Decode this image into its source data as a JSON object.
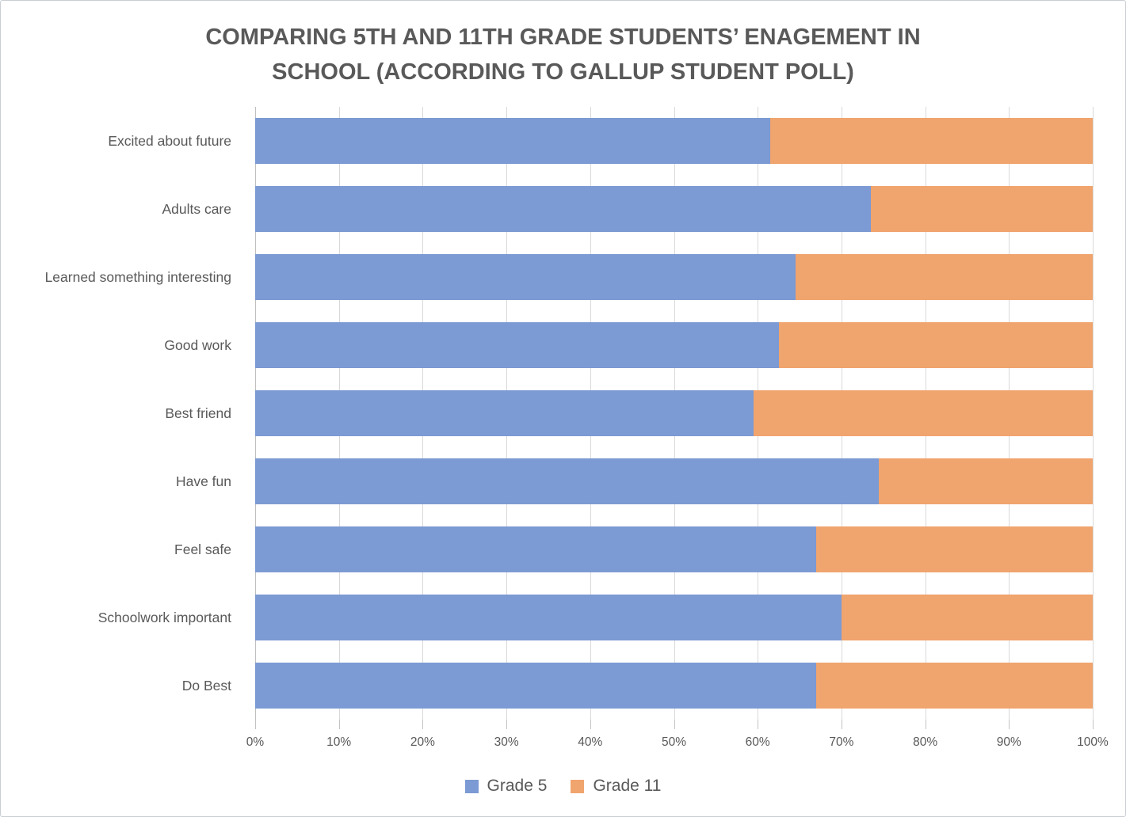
{
  "title_line1": "COMPARING 5TH AND 11TH GRADE STUDENTS’ ENAGEMENT IN",
  "title_line2": "SCHOOL (ACCORDING TO GALLUP STUDENT POLL)",
  "colors": {
    "grade5": "#7C9AD3",
    "grade11": "#F0A46E",
    "text": "#595959",
    "gridline": "#d9d9d9"
  },
  "legend": [
    {
      "label": "Grade 5",
      "color": "#7C9AD3"
    },
    {
      "label": "Grade 11",
      "color": "#F0A46E"
    }
  ],
  "chart_data": {
    "type": "bar",
    "subtype": "horizontal-100pct-stacked",
    "title": "COMPARING 5TH AND 11TH GRADE STUDENTS’ ENAGEMENT IN SCHOOL (ACCORDING TO GALLUP STUDENT POLL)",
    "categories": [
      "Excited about future",
      "Adults care",
      "Learned something interesting",
      "Good work",
      "Best friend",
      "Have fun",
      "Feel safe",
      "Schoolwork important",
      "Do Best"
    ],
    "series": [
      {
        "name": "Grade 5",
        "color": "#7C9AD3",
        "values": [
          61.5,
          73.5,
          64.5,
          62.5,
          59.5,
          74.5,
          67,
          70,
          67
        ]
      },
      {
        "name": "Grade 11",
        "color": "#F0A46E",
        "values": [
          38.5,
          26.5,
          35.5,
          37.5,
          40.5,
          25.5,
          33,
          30,
          33
        ]
      }
    ],
    "xlabel": "",
    "ylabel": "",
    "xlim": [
      0,
      100
    ],
    "x_ticks": [
      "0%",
      "10%",
      "20%",
      "30%",
      "40%",
      "50%",
      "60%",
      "70%",
      "80%",
      "90%",
      "100%"
    ],
    "grid": "vertical",
    "legend_position": "bottom"
  }
}
